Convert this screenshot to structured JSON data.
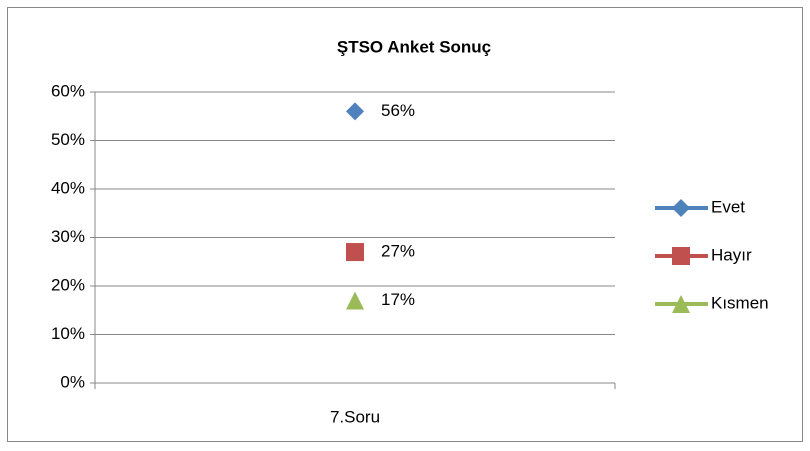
{
  "chart_data": {
    "type": "line",
    "title": "ŞTSO Anket Sonuç",
    "categories": [
      "7.Soru"
    ],
    "series": [
      {
        "name": "Evet",
        "color": "#4f81bd",
        "marker": "diamond",
        "values": [
          56
        ],
        "value_labels": [
          "56%"
        ]
      },
      {
        "name": "Hayır",
        "color": "#c0504d",
        "marker": "square",
        "values": [
          27
        ],
        "value_labels": [
          "27%"
        ]
      },
      {
        "name": "Kısmen",
        "color": "#9bbb59",
        "marker": "triangle",
        "values": [
          17
        ],
        "value_labels": [
          "17%"
        ]
      }
    ],
    "ylim": [
      0,
      60
    ],
    "yticks": [
      {
        "value": 0,
        "label": "0%"
      },
      {
        "value": 10,
        "label": "10%"
      },
      {
        "value": 20,
        "label": "20%"
      },
      {
        "value": 30,
        "label": "30%"
      },
      {
        "value": 40,
        "label": "40%"
      },
      {
        "value": 50,
        "label": "50%"
      },
      {
        "value": 60,
        "label": "60%"
      }
    ],
    "grid": true,
    "legend": "right"
  }
}
